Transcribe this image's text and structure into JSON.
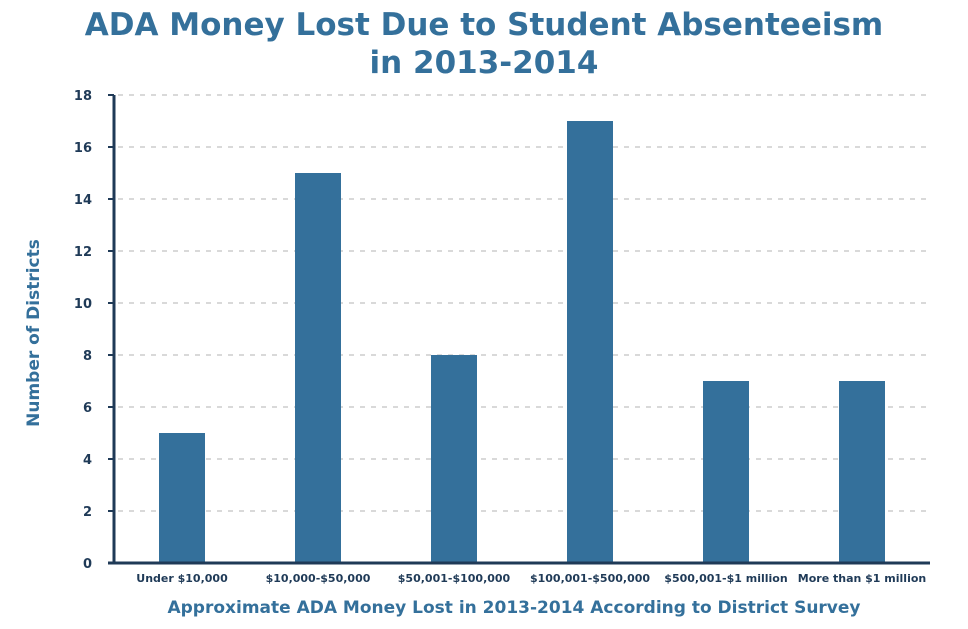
{
  "chart_data": {
    "type": "bar",
    "title_line1": "ADA Money Lost Due to Student Absenteeism",
    "title_line2": "in 2013-2014",
    "xlabel": "Approximate ADA Money Lost in 2013-2014 According to District Survey",
    "ylabel": "Number of Districts",
    "categories": [
      "Under $10,000",
      "$10,000-$50,000",
      "$50,001-$100,000",
      "$100,001-$500,000",
      "$500,001-$1 million",
      "More than $1 million"
    ],
    "values": [
      5,
      15,
      8,
      17,
      7,
      7
    ],
    "ylim": [
      0,
      18
    ],
    "yticks": [
      0,
      2,
      4,
      6,
      8,
      10,
      12,
      14,
      16,
      18
    ],
    "grid": true,
    "bar_color": "#34709b",
    "axis_color": "#1f3a57",
    "grid_color": "#d9d9d9"
  }
}
